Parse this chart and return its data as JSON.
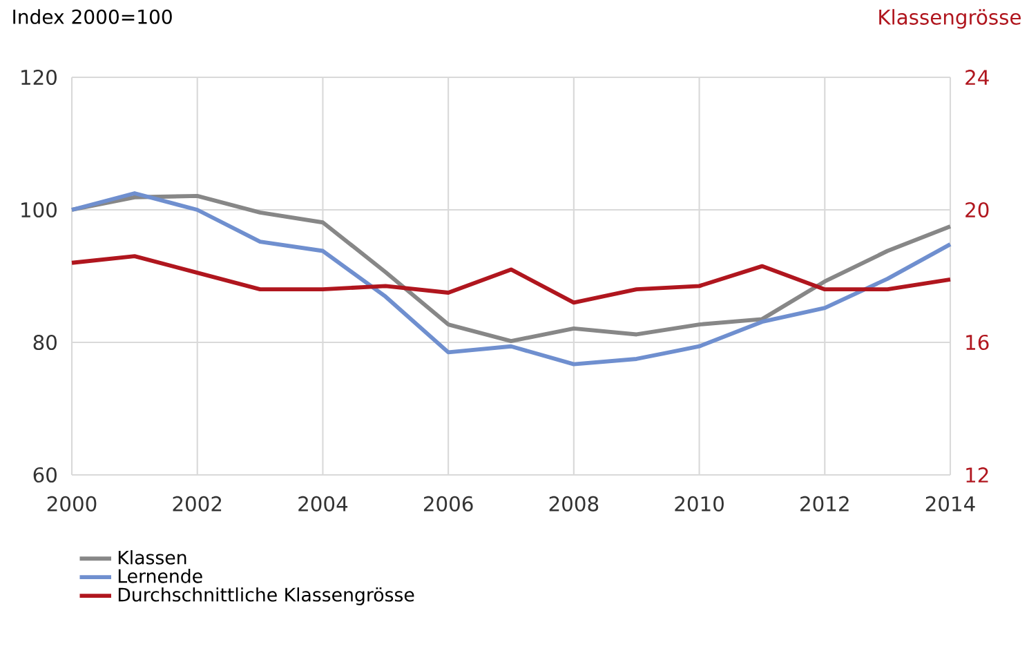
{
  "chart_data": {
    "type": "line",
    "ylabel": "Index 2000=100",
    "y2label": "Klassengrösse",
    "x": [
      2000,
      2001,
      2002,
      2003,
      2004,
      2005,
      2006,
      2007,
      2008,
      2009,
      2010,
      2011,
      2012,
      2013,
      2014
    ],
    "series": [
      {
        "name": "Klassen",
        "color": "#878787",
        "values": [
          100,
          101.9,
          102.1,
          99.6,
          98.1,
          90.6,
          82.7,
          80.2,
          82.1,
          81.2,
          82.7,
          83.5,
          89.2,
          93.8,
          97.5
        ]
      },
      {
        "name": "Lernende",
        "color": "#6f8fcf",
        "values": [
          100,
          102.5,
          100,
          95.2,
          93.8,
          86.9,
          78.5,
          79.4,
          76.7,
          77.5,
          79.4,
          83.1,
          85.2,
          89.6,
          94.8
        ]
      },
      {
        "name": "Durchschnittliche Klassengrösse",
        "color": "#b0161e",
        "axis": "y2",
        "values": [
          18.4,
          18.6,
          18.1,
          17.6,
          17.6,
          17.7,
          17.5,
          18.2,
          17.2,
          17.6,
          17.7,
          18.3,
          17.6,
          17.6,
          17.9
        ]
      }
    ],
    "xlim": [
      2000,
      2014
    ],
    "xticks": [
      2000,
      2002,
      2004,
      2006,
      2008,
      2010,
      2012,
      2014
    ],
    "ylim": [
      60,
      120
    ],
    "yticks": [
      60,
      80,
      100,
      120
    ],
    "y2lim": [
      12,
      24
    ],
    "y2ticks": [
      12,
      16,
      20,
      24
    ],
    "grid": true,
    "legend": "bottom left",
    "marker": "none",
    "line_style": "solid"
  }
}
